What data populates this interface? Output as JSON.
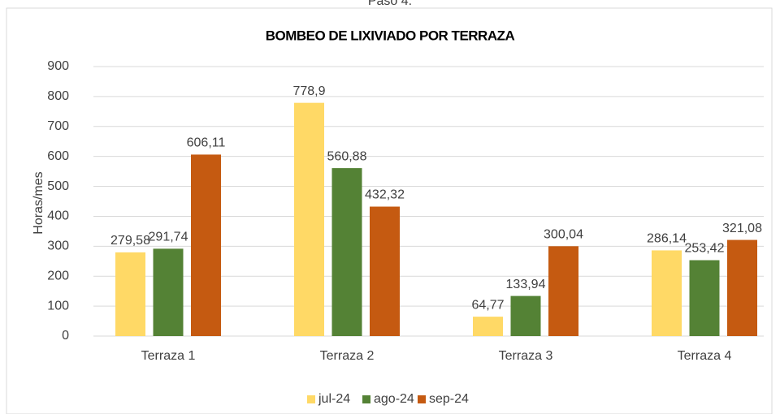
{
  "chart_data": {
    "type": "bar",
    "header": "Paso 4.",
    "title": "BOMBEO DE LIXIVIADO POR TERRAZA",
    "y_label": "Horas/mes",
    "categories": [
      "Terraza 1",
      "Terraza 2",
      "Terraza 3",
      "Terraza 4"
    ],
    "series": [
      {
        "name": "jul-24",
        "color": "#ffd966",
        "values": [
          279.58,
          778.9,
          64.77,
          286.14
        ],
        "value_labels": [
          "279,58",
          "778,9",
          "64,77",
          "286,14"
        ]
      },
      {
        "name": "ago-24",
        "color": "#548235",
        "values": [
          291.74,
          560.88,
          133.94,
          253.42
        ],
        "value_labels": [
          "291,74",
          "560,88",
          "133,94",
          "253,42"
        ]
      },
      {
        "name": "sep-24",
        "color": "#c55a11",
        "values": [
          606.11,
          432.32,
          300.04,
          321.08
        ],
        "value_labels": [
          "606,11",
          "432,32",
          "300,04",
          "321,08"
        ]
      }
    ],
    "ylim": [
      0,
      900
    ],
    "yticks": [
      0,
      100,
      200,
      300,
      400,
      500,
      600,
      700,
      800,
      900
    ],
    "grid": true,
    "legend": "bottom"
  }
}
